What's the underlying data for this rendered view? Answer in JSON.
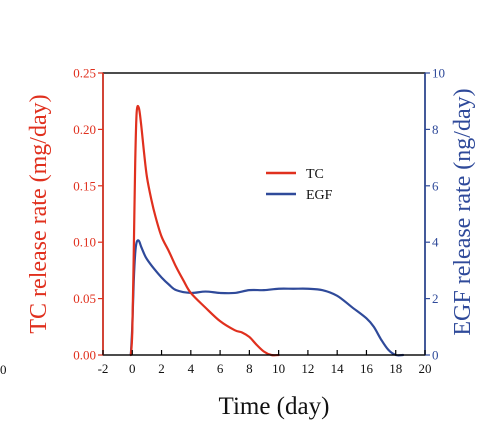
{
  "chart_data": {
    "type": "line",
    "xlabel": "Time (day)",
    "ylabel_left": "TC release rate (mg/day)",
    "ylabel_right": "EGF release rate (ng/day)",
    "xlim": [
      -2,
      20
    ],
    "ylim_left": [
      0,
      0.25
    ],
    "ylim_right": [
      0,
      10
    ],
    "xticks": [
      "-2",
      "0",
      "2",
      "4",
      "6",
      "8",
      "10",
      "12",
      "14",
      "16",
      "18",
      "20"
    ],
    "yticks_left": [
      "0.00",
      "0.05",
      "0.10",
      "0.15",
      "0.20",
      "0.25"
    ],
    "yticks_right": [
      "0",
      "2",
      "4",
      "6",
      "8",
      "10"
    ],
    "stray_label": "0",
    "legend_position": "upper-right",
    "colors": {
      "tc": "#e0301e",
      "egf": "#2f4a9a",
      "axis": "#000000"
    },
    "series": [
      {
        "name": "TC",
        "axis": "left",
        "color": "#e0301e",
        "x": [
          -0.1,
          0.0,
          0.1,
          0.2,
          0.3,
          0.45,
          0.6,
          0.8,
          1.0,
          1.3,
          1.6,
          2.0,
          2.5,
          3.0,
          3.5,
          4.0,
          5.0,
          6.0,
          7.0,
          7.5,
          8.0,
          8.5,
          9.0,
          9.5,
          10.0
        ],
        "y": [
          0.0,
          0.02,
          0.09,
          0.17,
          0.215,
          0.219,
          0.205,
          0.18,
          0.158,
          0.138,
          0.122,
          0.105,
          0.092,
          0.078,
          0.066,
          0.055,
          0.042,
          0.03,
          0.022,
          0.02,
          0.016,
          0.009,
          0.003,
          0.0,
          0.0
        ]
      },
      {
        "name": "EGF",
        "axis": "right",
        "color": "#2f4a9a",
        "x": [
          -0.1,
          0.0,
          0.1,
          0.2,
          0.3,
          0.45,
          0.6,
          0.8,
          1.0,
          1.5,
          2.0,
          2.5,
          3.0,
          4.0,
          5.0,
          6.0,
          7.0,
          8.0,
          9.0,
          10.0,
          11.0,
          12.0,
          13.0,
          14.0,
          15.0,
          16.0,
          16.5,
          17.0,
          17.5,
          18.0,
          18.5
        ],
        "y": [
          0.0,
          1.0,
          2.6,
          3.6,
          4.0,
          4.05,
          3.85,
          3.6,
          3.4,
          3.05,
          2.75,
          2.5,
          2.3,
          2.2,
          2.25,
          2.2,
          2.2,
          2.3,
          2.3,
          2.35,
          2.35,
          2.35,
          2.3,
          2.1,
          1.7,
          1.3,
          1.0,
          0.55,
          0.18,
          0.0,
          0.0
        ]
      }
    ]
  }
}
